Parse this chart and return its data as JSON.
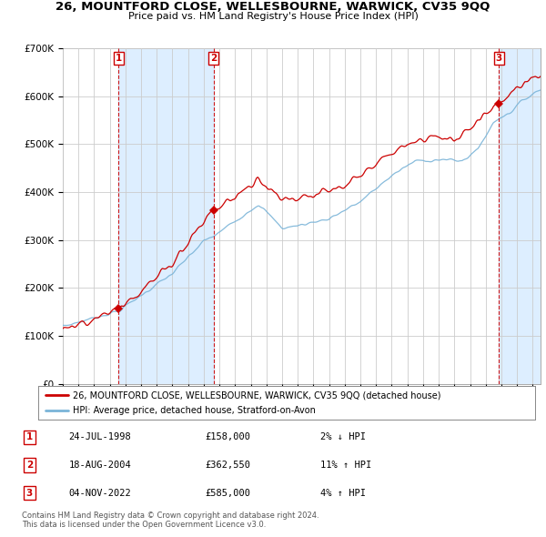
{
  "title": "26, MOUNTFORD CLOSE, WELLESBOURNE, WARWICK, CV35 9QQ",
  "subtitle": "Price paid vs. HM Land Registry's House Price Index (HPI)",
  "legend_line1": "26, MOUNTFORD CLOSE, WELLESBOURNE, WARWICK, CV35 9QQ (detached house)",
  "legend_line2": "HPI: Average price, detached house, Stratford-on-Avon",
  "footer1": "Contains HM Land Registry data © Crown copyright and database right 2024.",
  "footer2": "This data is licensed under the Open Government Licence v3.0.",
  "sales": [
    {
      "num": 1,
      "date": "24-JUL-1998",
      "price": 158000,
      "pct": "2% ↓ HPI",
      "year": 1998.56
    },
    {
      "num": 2,
      "date": "18-AUG-2004",
      "price": 362550,
      "pct": "11% ↑ HPI",
      "year": 2004.63
    },
    {
      "num": 3,
      "date": "04-NOV-2022",
      "price": 585000,
      "pct": "4% ↑ HPI",
      "year": 2022.84
    }
  ],
  "hpi_color": "#7ab4d8",
  "sale_line_color": "#cc0000",
  "sale_dot_color": "#cc0000",
  "vline_color": "#cc0000",
  "band_color": "#ddeeff",
  "background_color": "#ffffff",
  "grid_color": "#cccccc",
  "ylim": [
    0,
    700000
  ],
  "xlim_start": 1995.0,
  "xlim_end": 2025.5
}
